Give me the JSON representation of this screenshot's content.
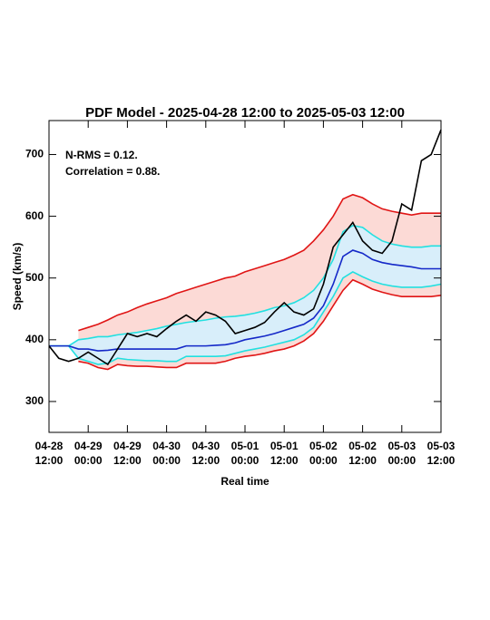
{
  "chart_data": {
    "type": "line",
    "title": "PDF Model - 2025-04-28 12:00 to 2025-05-03 12:00",
    "xlabel": "Real time",
    "ylabel": "Speed (km/s)",
    "annotations": [
      "N-RMS = 0.12.",
      "Correlation = 0.88."
    ],
    "x": [
      "2025-04-28T12:00",
      "2025-04-28T15:00",
      "2025-04-28T18:00",
      "2025-04-28T21:00",
      "2025-04-29T00:00",
      "2025-04-29T03:00",
      "2025-04-29T06:00",
      "2025-04-29T09:00",
      "2025-04-29T12:00",
      "2025-04-29T15:00",
      "2025-04-29T18:00",
      "2025-04-29T21:00",
      "2025-04-30T00:00",
      "2025-04-30T03:00",
      "2025-04-30T06:00",
      "2025-04-30T09:00",
      "2025-04-30T12:00",
      "2025-04-30T15:00",
      "2025-04-30T18:00",
      "2025-04-30T21:00",
      "2025-05-01T00:00",
      "2025-05-01T03:00",
      "2025-05-01T06:00",
      "2025-05-01T09:00",
      "2025-05-01T12:00",
      "2025-05-01T15:00",
      "2025-05-01T18:00",
      "2025-05-01T21:00",
      "2025-05-02T00:00",
      "2025-05-02T03:00",
      "2025-05-02T06:00",
      "2025-05-02T09:00",
      "2025-05-02T12:00",
      "2025-05-02T15:00",
      "2025-05-02T18:00",
      "2025-05-02T21:00",
      "2025-05-03T00:00",
      "2025-05-03T03:00",
      "2025-05-03T06:00",
      "2025-05-03T09:00",
      "2025-05-03T12:00"
    ],
    "series": [
      {
        "color": "#e01515",
        "values": [
          null,
          null,
          null,
          415,
          420,
          425,
          432,
          440,
          445,
          452,
          458,
          463,
          468,
          475,
          480,
          485,
          490,
          495,
          500,
          503,
          510,
          515,
          520,
          525,
          530,
          537,
          545,
          560,
          578,
          600,
          628,
          635,
          630,
          620,
          612,
          608,
          605,
          602,
          605,
          605,
          605
        ]
      },
      {
        "color": "#e01515",
        "values": [
          null,
          null,
          null,
          365,
          362,
          355,
          352,
          360,
          358,
          357,
          357,
          356,
          355,
          355,
          362,
          362,
          362,
          362,
          365,
          370,
          373,
          375,
          378,
          382,
          385,
          390,
          398,
          410,
          430,
          455,
          480,
          497,
          490,
          482,
          477,
          473,
          470,
          470,
          470,
          470,
          472
        ]
      },
      {
        "color": "#22e0e0",
        "values": [
          390,
          390,
          390,
          400,
          402,
          405,
          405,
          408,
          410,
          412,
          415,
          418,
          422,
          425,
          428,
          430,
          432,
          435,
          437,
          438,
          440,
          443,
          447,
          452,
          455,
          460,
          468,
          480,
          500,
          530,
          575,
          585,
          582,
          570,
          560,
          555,
          552,
          550,
          550,
          552,
          552
        ]
      },
      {
        "color": "#22e0e0",
        "values": [
          390,
          390,
          390,
          370,
          365,
          360,
          362,
          370,
          368,
          367,
          366,
          366,
          365,
          365,
          373,
          373,
          373,
          373,
          374,
          378,
          382,
          385,
          388,
          392,
          396,
          400,
          408,
          420,
          445,
          470,
          500,
          510,
          502,
          495,
          490,
          487,
          485,
          485,
          485,
          487,
          490
        ]
      },
      {
        "color": "#1428c8",
        "values": [
          390,
          390,
          390,
          385,
          385,
          382,
          383,
          385,
          385,
          385,
          385,
          385,
          385,
          385,
          390,
          390,
          390,
          391,
          392,
          395,
          400,
          403,
          406,
          410,
          415,
          420,
          425,
          435,
          455,
          490,
          535,
          545,
          540,
          530,
          525,
          522,
          520,
          518,
          515,
          515,
          515
        ]
      },
      {
        "color": "#000000",
        "values": [
          390,
          370,
          365,
          370,
          380,
          370,
          360,
          385,
          410,
          405,
          410,
          405,
          418,
          430,
          440,
          430,
          445,
          440,
          430,
          410,
          415,
          420,
          428,
          445,
          460,
          445,
          440,
          450,
          490,
          550,
          570,
          590,
          560,
          545,
          540,
          560,
          620,
          610,
          690,
          700,
          740
        ]
      }
    ],
    "bands": [
      {
        "series": [
          0,
          1
        ],
        "color": "#fcdad6"
      },
      {
        "series": [
          2,
          3
        ],
        "color": "#d8eefa"
      }
    ],
    "xlim": [
      "2025-04-28T12:00",
      "2025-05-03T12:00"
    ],
    "xticks": [
      {
        "value": "2025-04-28T12:00",
        "label": "04-28\n12:00"
      },
      {
        "value": "2025-04-29T00:00",
        "label": "04-29\n00:00"
      },
      {
        "value": "2025-04-29T12:00",
        "label": "04-29\n12:00"
      },
      {
        "value": "2025-04-30T00:00",
        "label": "04-30\n00:00"
      },
      {
        "value": "2025-04-30T12:00",
        "label": "04-30\n12:00"
      },
      {
        "value": "2025-05-01T00:00",
        "label": "05-01\n00:00"
      },
      {
        "value": "2025-05-01T12:00",
        "label": "05-01\n12:00"
      },
      {
        "value": "2025-05-02T00:00",
        "label": "05-02\n00:00"
      },
      {
        "value": "2025-05-02T12:00",
        "label": "05-02\n12:00"
      },
      {
        "value": "2025-05-03T00:00",
        "label": "05-03\n00:00"
      },
      {
        "value": "2025-05-03T12:00",
        "label": "05-03\n12:00"
      }
    ],
    "ylim": [
      250,
      755
    ],
    "yticks": [
      300,
      400,
      500,
      600,
      700
    ],
    "grid": false
  }
}
